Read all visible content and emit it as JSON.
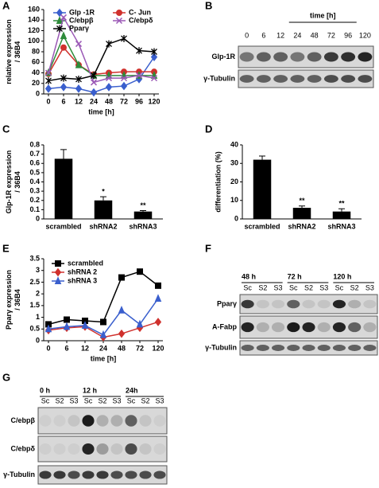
{
  "panel_labels": [
    "A",
    "B",
    "C",
    "D",
    "E",
    "F",
    "G"
  ],
  "chart_data": [
    {
      "type": "line",
      "categories": [
        "0",
        "6",
        "12",
        "24",
        "48",
        "72",
        "96",
        "120"
      ],
      "ylim": [
        0,
        160
      ],
      "yticks": [
        0,
        20,
        40,
        60,
        80,
        100,
        120,
        140,
        160
      ],
      "ylabel": [
        "relative expression",
        "/ 36B4"
      ],
      "xlabel": "time [h]",
      "legend": "top",
      "series": [
        {
          "name": "Glp -1R",
          "color": "#3a5fcd",
          "marker": "diamond",
          "values": [
            10,
            13,
            10,
            3,
            13,
            15,
            28,
            70
          ]
        },
        {
          "name": "C- Jun",
          "color": "#d0312d",
          "marker": "circle",
          "values": [
            38,
            88,
            55,
            37,
            40,
            42,
            42,
            42
          ]
        },
        {
          "name": "C/ebpβ",
          "color": "#2e8b3a",
          "marker": "triangle",
          "values": [
            40,
            110,
            55,
            35,
            35,
            35,
            35,
            35
          ]
        },
        {
          "name": "C/ebpδ",
          "color": "#9b59b6",
          "marker": "x",
          "values": [
            40,
            145,
            95,
            22,
            30,
            30,
            35,
            30
          ]
        },
        {
          "name": "Pparγ",
          "color": "#000000",
          "marker": "star",
          "values": [
            25,
            30,
            28,
            35,
            95,
            105,
            82,
            80
          ]
        }
      ]
    },
    {
      "type": "bar",
      "categories": [
        "scrambled",
        "shRNA2",
        "shRNA3"
      ],
      "values": [
        0.65,
        0.2,
        0.08
      ],
      "errors": [
        0.1,
        0.04,
        0.01
      ],
      "significance": [
        null,
        "*",
        "**"
      ],
      "color": "#000000",
      "ylim": [
        0,
        0.8
      ],
      "yticks": [
        0,
        0.1,
        0.2,
        0.3,
        0.4,
        0.5,
        0.6,
        0.7,
        0.8
      ],
      "ylabel": [
        "Glp-1R expression",
        "/ 36B4"
      ]
    },
    {
      "type": "bar",
      "categories": [
        "scrambled",
        "shRNA2",
        "shRNA3"
      ],
      "values": [
        32,
        6,
        4
      ],
      "errors": [
        2,
        1,
        1.5
      ],
      "significance": [
        null,
        "**",
        "**"
      ],
      "color": "#000000",
      "ylim": [
        0,
        40
      ],
      "yticks": [
        0,
        10,
        20,
        30,
        40
      ],
      "ylabel": [
        "differentiation (%)"
      ]
    },
    {
      "type": "line",
      "categories": [
        "0",
        "6",
        "12",
        "24",
        "48",
        "72",
        "120"
      ],
      "ylim": [
        0,
        3.5
      ],
      "yticks": [
        0,
        0.5,
        1,
        1.5,
        2,
        2.5,
        3,
        3.5
      ],
      "ylabel": [
        "Pparγ expression",
        "/ 36B4"
      ],
      "xlabel": "time [h]",
      "legend": "upper left",
      "series": [
        {
          "name": "scrambled",
          "color": "#000000",
          "marker": "square",
          "values": [
            0.7,
            0.9,
            0.85,
            0.8,
            2.7,
            2.95,
            2.35
          ]
        },
        {
          "name": "shRNA 2",
          "color": "#d0312d",
          "marker": "diamond",
          "values": [
            0.45,
            0.55,
            0.6,
            0.15,
            0.3,
            0.55,
            0.8
          ]
        },
        {
          "name": "shRNA 3",
          "color": "#3a5fcd",
          "marker": "triangle",
          "values": [
            0.5,
            0.6,
            0.65,
            0.25,
            1.3,
            0.7,
            1.8
          ]
        }
      ]
    }
  ],
  "blots": [
    {
      "header": "time [h]",
      "groups": [],
      "lanes": [
        "0",
        "6",
        "12",
        "24",
        "48",
        "72",
        "96",
        "120"
      ],
      "rows": [
        "Glp-1R",
        "γ-Tubulin"
      ]
    },
    {
      "groups": [
        "48 h",
        "72 h",
        "120 h"
      ],
      "lanes": [
        "Sc",
        "S2",
        "S3",
        "Sc",
        "S2",
        "S3",
        "Sc",
        "S2",
        "S3"
      ],
      "rows": [
        "Pparγ",
        "A-Fabp",
        "γ-Tubulin"
      ]
    },
    {
      "groups": [
        "0 h",
        "12 h",
        "24h"
      ],
      "lanes": [
        "Sc",
        "S2",
        "S3",
        "Sc",
        "S2",
        "S3",
        "Sc",
        "S2",
        "S3"
      ],
      "rows": [
        "C/ebpβ",
        "C/ebpδ",
        "γ-Tubulin"
      ]
    }
  ]
}
